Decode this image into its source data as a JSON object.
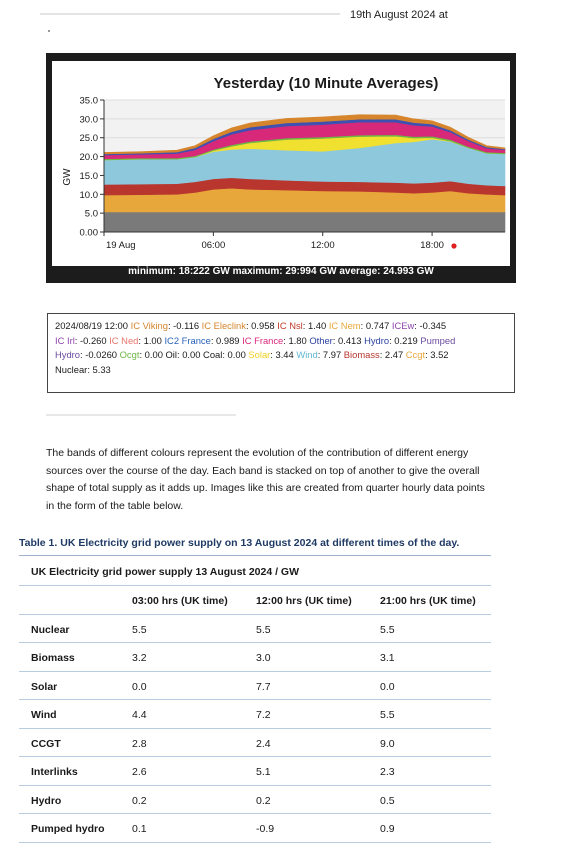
{
  "header": {
    "date_fragment": "19th August 2024 at"
  },
  "chart_data": {
    "type": "area",
    "title": "Yesterday (10 Minute Averages)",
    "ylabel": "GW",
    "xlabel": "",
    "ylim": [
      0,
      35
    ],
    "yticks": [
      "35.0",
      "30.0",
      "25.0",
      "20.0",
      "15.0",
      "10.0",
      "5.0",
      "0.00"
    ],
    "xticks": [
      {
        "label": "19 Aug",
        "hour": 0
      },
      {
        "label": "06:00",
        "hour": 6
      },
      {
        "label": "12:00",
        "hour": 12
      },
      {
        "label": "18:00",
        "hour": 18
      }
    ],
    "current_hour": 19.2,
    "footer": "minimum: 18:222 GW maximum: 29:994 GW average: 24.993 GW",
    "hours": [
      0,
      2,
      4,
      5,
      6,
      7,
      8,
      10,
      12,
      14,
      16,
      17,
      18,
      19,
      20,
      21,
      22
    ],
    "series": [
      {
        "color": "#7a7a7a",
        "values": [
          5.3,
          5.3,
          5.3,
          5.3,
          5.3,
          5.3,
          5.3,
          5.3,
          5.3,
          5.3,
          5.3,
          5.3,
          5.3,
          5.3,
          5.3,
          5.3,
          5.3
        ]
      },
      {
        "color": "#e8a73a",
        "values": [
          4.5,
          4.6,
          4.7,
          5.2,
          6.0,
          6.3,
          6.0,
          5.8,
          5.6,
          5.5,
          5.2,
          5.0,
          5.2,
          5.6,
          5.0,
          4.7,
          4.5
        ]
      },
      {
        "color": "#b8362e",
        "values": [
          2.8,
          2.8,
          2.8,
          2.8,
          2.8,
          2.8,
          2.8,
          2.6,
          2.5,
          2.5,
          2.6,
          2.6,
          2.6,
          2.6,
          2.5,
          2.4,
          2.4
        ]
      },
      {
        "color": "#8ec8dc",
        "values": [
          6.5,
          6.6,
          6.5,
          6.6,
          7.2,
          7.5,
          8.0,
          8.0,
          8.0,
          9.0,
          10.5,
          11.0,
          11.5,
          10.5,
          9.5,
          8.5,
          8.5
        ]
      },
      {
        "color": "#f0e030",
        "values": [
          0.0,
          0.0,
          0.0,
          0.0,
          0.3,
          0.8,
          1.5,
          2.8,
          3.4,
          3.0,
          1.8,
          1.0,
          0.4,
          0.1,
          0.0,
          0.0,
          0.0
        ]
      },
      {
        "color": "#6fb744",
        "values": [
          0.3,
          0.3,
          0.3,
          0.3,
          0.3,
          0.4,
          0.4,
          0.4,
          0.4,
          0.4,
          0.4,
          0.4,
          0.4,
          0.4,
          0.3,
          0.3,
          0.3
        ]
      },
      {
        "color": "#d8287a",
        "values": [
          1.0,
          1.0,
          1.2,
          1.6,
          2.2,
          2.8,
          3.0,
          3.2,
          3.3,
          3.4,
          3.3,
          3.0,
          2.6,
          2.0,
          1.5,
          1.0,
          0.8
        ]
      },
      {
        "color": "#3f51b0",
        "values": [
          0.3,
          0.3,
          0.4,
          0.5,
          0.6,
          0.7,
          0.8,
          0.8,
          0.8,
          0.8,
          0.8,
          0.7,
          0.6,
          0.5,
          0.4,
          0.3,
          0.2
        ]
      },
      {
        "color": "#d6852c",
        "values": [
          0.4,
          0.4,
          0.5,
          0.6,
          0.8,
          1.0,
          1.1,
          1.2,
          1.2,
          1.2,
          1.1,
          1.0,
          0.9,
          0.8,
          0.6,
          0.4,
          0.3
        ]
      }
    ]
  },
  "live_box": {
    "lines": [
      [
        {
          "t": "2024/08/19 12:00 ",
          "c": "#1a1a1a"
        },
        {
          "t": "IC Viking",
          "c": "#d6852c"
        },
        {
          "t": ": -0.116 ",
          "c": "#1a1a1a"
        },
        {
          "t": "IC Eleclink",
          "c": "#d6852c"
        },
        {
          "t": ": 0.958 ",
          "c": "#1a1a1a"
        },
        {
          "t": "IC Nsl",
          "c": "#c0392b"
        },
        {
          "t": ": 1.40 ",
          "c": "#1a1a1a"
        },
        {
          "t": "IC Nem",
          "c": "#e8a73a"
        },
        {
          "t": ": 0.747 ",
          "c": "#1a1a1a"
        },
        {
          "t": "ICEw",
          "c": "#8e44ad"
        },
        {
          "t": ": -0.345",
          "c": "#1a1a1a"
        }
      ],
      [
        {
          "t": "IC Irl",
          "c": "#8e44ad"
        },
        {
          "t": ": -0.260 ",
          "c": "#1a1a1a"
        },
        {
          "t": "IC Ned",
          "c": "#e8736c"
        },
        {
          "t": ": 1.00 ",
          "c": "#1a1a1a"
        },
        {
          "t": "IC2 France",
          "c": "#2a63b8"
        },
        {
          "t": ": 0.989 ",
          "c": "#1a1a1a"
        },
        {
          "t": "IC France",
          "c": "#d8287a"
        },
        {
          "t": ": 1.80 ",
          "c": "#1a1a1a"
        },
        {
          "t": "Other",
          "c": "#2a3f9f"
        },
        {
          "t": ": 0.413 ",
          "c": "#1a1a1a"
        },
        {
          "t": "Hydro",
          "c": "#2a3f9f"
        },
        {
          "t": ": 0.219 ",
          "c": "#1a1a1a"
        },
        {
          "t": "Pumped",
          "c": "#6a4aa0"
        }
      ],
      [
        {
          "t": "Hydro",
          "c": "#6a4aa0"
        },
        {
          "t": ": -0.0260 ",
          "c": "#1a1a1a"
        },
        {
          "t": "Ocgt",
          "c": "#6fb744"
        },
        {
          "t": ": 0.00 ",
          "c": "#1a1a1a"
        },
        {
          "t": "Oil",
          "c": "#1a1a1a"
        },
        {
          "t": ": 0.00 ",
          "c": "#1a1a1a"
        },
        {
          "t": "Coal",
          "c": "#1a1a1a"
        },
        {
          "t": ": 0.00 ",
          "c": "#1a1a1a"
        },
        {
          "t": "Solar",
          "c": "#f0d020"
        },
        {
          "t": ": 3.44 ",
          "c": "#1a1a1a"
        },
        {
          "t": "Wind",
          "c": "#5fb8d0"
        },
        {
          "t": ": 7.97 ",
          "c": "#1a1a1a"
        },
        {
          "t": "Biomass",
          "c": "#b8362e"
        },
        {
          "t": ": 2.47 ",
          "c": "#1a1a1a"
        },
        {
          "t": "Ccgt",
          "c": "#e8a73a"
        },
        {
          "t": ": 3.52",
          "c": "#1a1a1a"
        }
      ],
      [
        {
          "t": "Nuclear",
          "c": "#1a1a1a"
        },
        {
          "t": ": 5.33",
          "c": "#1a1a1a"
        }
      ]
    ]
  },
  "paragraph": "The bands of different colours represent the evolution of the contribution of different energy sources over the course of the day. Each band is stacked on top of another to give the overall shape of total supply as it adds up. Images like this are created from quarter hourly data points in the form of the table below.",
  "table": {
    "caption": "Table 1. UK Electricity grid power supply on 13 August 2024 at different times of the day.",
    "title": "UK Electricity grid power supply 13 August 2024 / GW",
    "columns": [
      "",
      "03:00 hrs (UK time)",
      "12:00 hrs (UK time)",
      "21:00 hrs (UK time)"
    ],
    "rows": [
      [
        "Nuclear",
        "5.5",
        "5.5",
        "5.5"
      ],
      [
        "Biomass",
        "3.2",
        "3.0",
        "3.1"
      ],
      [
        "Solar",
        "0.0",
        "7.7",
        "0.0"
      ],
      [
        "Wind",
        "4.4",
        "7.2",
        "5.5"
      ],
      [
        "CCGT",
        "2.8",
        "2.4",
        "9.0"
      ],
      [
        "Interlinks",
        "2.6",
        "5.1",
        "2.3"
      ],
      [
        "Hydro",
        "0.2",
        "0.2",
        "0.5"
      ],
      [
        "Pumped hydro",
        "0.1",
        "-0.9",
        "0.9"
      ]
    ]
  }
}
